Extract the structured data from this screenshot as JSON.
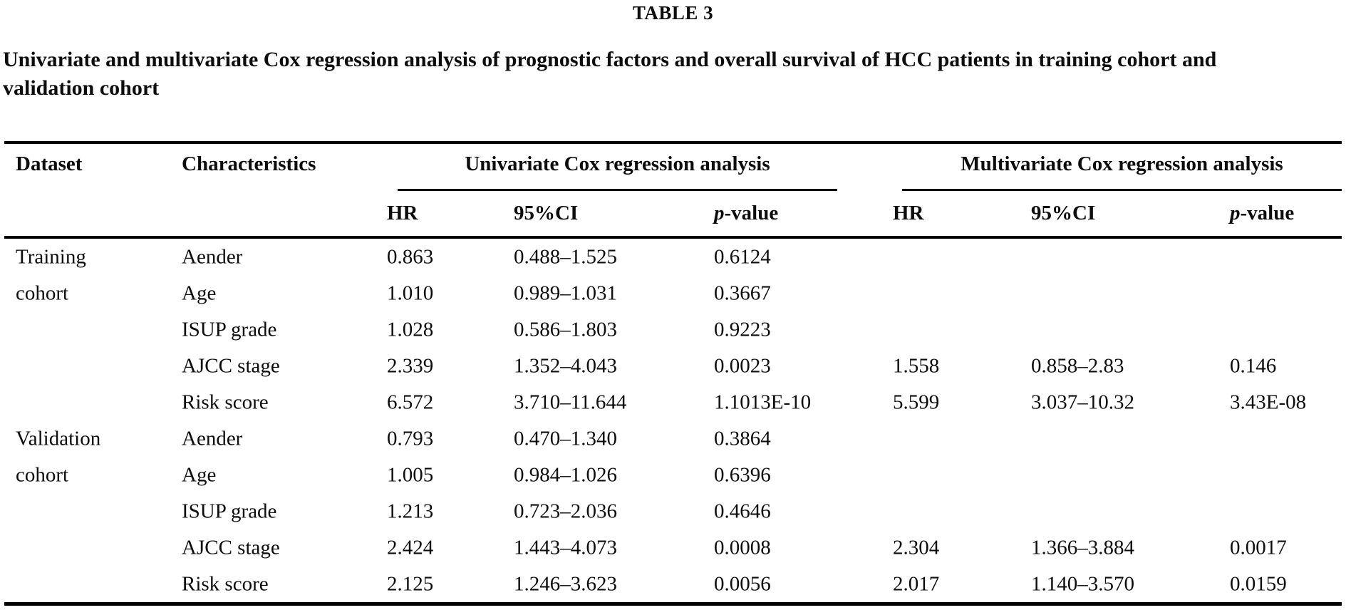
{
  "title": "TABLE 3",
  "caption_lines": [
    "Univariate and multivariate Cox regression analysis of prognostic factors and overall survival of HCC patients in training cohort and",
    "validation cohort"
  ],
  "colors": {
    "text": "#0d0d0d",
    "background": "#ffffff",
    "rule": "#000000"
  },
  "table": {
    "columns": {
      "dataset": "Dataset",
      "characteristics": "Characteristics"
    },
    "group_headers": {
      "univariate": "Univariate Cox regression analysis",
      "multivariate": "Multivariate Cox regression analysis"
    },
    "sub_headers": {
      "hr": "HR",
      "ci": "95%CI",
      "p_italic": "p",
      "p_rest": "-value"
    },
    "groups": [
      {
        "name_lines": [
          "Training",
          "cohort"
        ],
        "rows": [
          {
            "characteristic": "Aender",
            "u_hr": "0.863",
            "u_ci": "0.488–1.525",
            "u_p": "0.6124",
            "m_hr": "",
            "m_ci": "",
            "m_p": ""
          },
          {
            "characteristic": "Age",
            "u_hr": "1.010",
            "u_ci": "0.989–1.031",
            "u_p": "0.3667",
            "m_hr": "",
            "m_ci": "",
            "m_p": ""
          },
          {
            "characteristic": "ISUP grade",
            "u_hr": "1.028",
            "u_ci": "0.586–1.803",
            "u_p": "0.9223",
            "m_hr": "",
            "m_ci": "",
            "m_p": ""
          },
          {
            "characteristic": "AJCC stage",
            "u_hr": "2.339",
            "u_ci": "1.352–4.043",
            "u_p": "0.0023",
            "m_hr": "1.558",
            "m_ci": "0.858–2.83",
            "m_p": "0.146"
          },
          {
            "characteristic": "Risk score",
            "u_hr": "6.572",
            "u_ci": "3.710–11.644",
            "u_p": "1.1013E-10",
            "m_hr": "5.599",
            "m_ci": "3.037–10.32",
            "m_p": "3.43E-08"
          }
        ]
      },
      {
        "name_lines": [
          "Validation",
          "cohort"
        ],
        "rows": [
          {
            "characteristic": "Aender",
            "u_hr": "0.793",
            "u_ci": "0.470–1.340",
            "u_p": "0.3864",
            "m_hr": "",
            "m_ci": "",
            "m_p": ""
          },
          {
            "characteristic": "Age",
            "u_hr": "1.005",
            "u_ci": "0.984–1.026",
            "u_p": "0.6396",
            "m_hr": "",
            "m_ci": "",
            "m_p": ""
          },
          {
            "characteristic": "ISUP grade",
            "u_hr": "1.213",
            "u_ci": "0.723–2.036",
            "u_p": "0.4646",
            "m_hr": "",
            "m_ci": "",
            "m_p": ""
          },
          {
            "characteristic": "AJCC stage",
            "u_hr": "2.424",
            "u_ci": "1.443–4.073",
            "u_p": "0.0008",
            "m_hr": "2.304",
            "m_ci": "1.366–3.884",
            "m_p": "0.0017"
          },
          {
            "characteristic": "Risk score",
            "u_hr": "2.125",
            "u_ci": "1.246–3.623",
            "u_p": "0.0056",
            "m_hr": "2.017",
            "m_ci": "1.140–3.570",
            "m_p": "0.0159"
          }
        ]
      }
    ]
  }
}
